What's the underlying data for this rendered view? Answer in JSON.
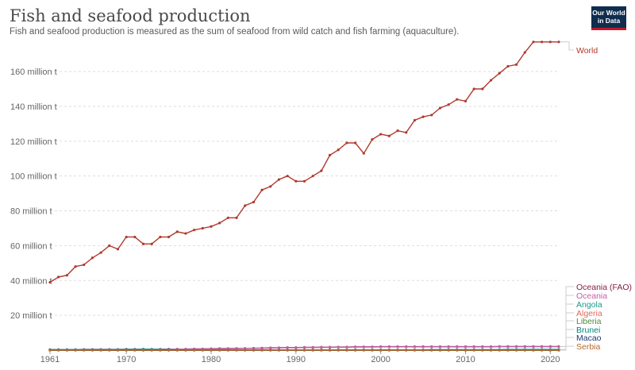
{
  "header": {
    "title": "Fish and seafood production",
    "subtitle": "Fish and seafood production is measured as the sum of seafood from wild catch and fish farming (aquaculture).",
    "logo_line1": "Our World",
    "logo_line2": "in Data"
  },
  "chart_data": {
    "type": "line",
    "title": "Fish and seafood production",
    "subtitle": "Fish and seafood production is measured as the sum of seafood from wild catch and fish farming (aquaculture).",
    "xlabel": "",
    "ylabel": "",
    "xlim": [
      1961,
      2021
    ],
    "ylim": [
      0,
      176
    ],
    "x_ticks": [
      1961,
      1970,
      1980,
      1990,
      2000,
      2010,
      2020
    ],
    "y_ticks": [
      20,
      40,
      60,
      80,
      100,
      120,
      140,
      160
    ],
    "y_tick_labels": [
      "20 million t",
      "40 million t",
      "60 million t",
      "80 million t",
      "100 million t",
      "120 million t",
      "140 million t",
      "160 million t"
    ],
    "grid": "horizontal-dashed",
    "legend": "right-labels",
    "x": [
      1961,
      1962,
      1963,
      1964,
      1965,
      1966,
      1967,
      1968,
      1969,
      1970,
      1971,
      1972,
      1973,
      1974,
      1975,
      1976,
      1977,
      1978,
      1979,
      1980,
      1981,
      1982,
      1983,
      1984,
      1985,
      1986,
      1987,
      1988,
      1989,
      1990,
      1991,
      1992,
      1993,
      1994,
      1995,
      1996,
      1997,
      1998,
      1999,
      2000,
      2001,
      2002,
      2003,
      2004,
      2005,
      2006,
      2007,
      2008,
      2009,
      2010,
      2011,
      2012,
      2013,
      2014,
      2015,
      2016,
      2017,
      2018,
      2019,
      2020,
      2021
    ],
    "series": [
      {
        "name": "World",
        "color": "#b03a2e",
        "values": [
          39,
          42,
          43,
          48,
          49,
          53,
          56,
          60,
          58,
          65,
          65,
          61,
          61,
          65,
          65,
          68,
          67,
          69,
          70,
          71,
          73,
          76,
          76,
          83,
          85,
          92,
          94,
          98,
          100,
          97,
          97,
          100,
          103,
          112,
          115,
          119,
          119,
          113,
          121,
          124,
          123,
          126,
          125,
          132,
          134,
          135,
          139,
          141,
          144,
          143,
          150,
          150,
          155,
          159,
          163,
          164,
          171,
          177,
          177,
          177,
          177
        ]
      },
      {
        "name": "Oceania (FAO)",
        "color": "#8a1c4a",
        "values": [
          0.3,
          0.3,
          0.3,
          0.3,
          0.4,
          0.4,
          0.4,
          0.4,
          0.4,
          0.5,
          0.5,
          0.5,
          0.5,
          0.5,
          0.6,
          0.6,
          0.6,
          0.7,
          0.7,
          0.8,
          0.9,
          0.9,
          1.0,
          1.0,
          1.1,
          1.2,
          1.3,
          1.4,
          1.5,
          1.5,
          1.6,
          1.6,
          1.7,
          1.7,
          1.8,
          1.8,
          1.9,
          1.9,
          1.9,
          2.0,
          2.0,
          2.0,
          2.0,
          2.0,
          2.0,
          2.0,
          2.0,
          2.0,
          2.0,
          2.0,
          2.0,
          2.0,
          2.0,
          2.1,
          2.1,
          2.1,
          2.1,
          2.1,
          2.1,
          2.1,
          2.1
        ]
      },
      {
        "name": "Oceania",
        "color": "#c15fa8",
        "values": [
          0.3,
          0.3,
          0.3,
          0.3,
          0.4,
          0.4,
          0.4,
          0.4,
          0.4,
          0.5,
          0.5,
          0.5,
          0.5,
          0.5,
          0.6,
          0.6,
          0.6,
          0.7,
          0.7,
          0.8,
          0.8,
          0.9,
          0.9,
          1.0,
          1.0,
          1.1,
          1.2,
          1.3,
          1.4,
          1.4,
          1.5,
          1.5,
          1.6,
          1.6,
          1.7,
          1.7,
          1.8,
          1.8,
          1.8,
          1.9,
          1.9,
          1.9,
          1.9,
          1.9,
          1.9,
          1.9,
          1.9,
          1.9,
          1.9,
          1.9,
          1.9,
          1.9,
          1.9,
          2.0,
          2.0,
          2.0,
          2.0,
          2.0,
          2.0,
          2.0,
          2.0
        ]
      },
      {
        "name": "Angola",
        "color": "#1a9a8a",
        "values": [
          0.3,
          0.3,
          0.3,
          0.3,
          0.3,
          0.3,
          0.3,
          0.3,
          0.3,
          0.4,
          0.4,
          0.6,
          0.5,
          0.4,
          0.3,
          0.1,
          0.1,
          0.1,
          0.1,
          0.1,
          0.1,
          0.1,
          0.1,
          0.1,
          0.1,
          0.1,
          0.1,
          0.1,
          0.1,
          0.1,
          0.1,
          0.1,
          0.1,
          0.1,
          0.2,
          0.2,
          0.2,
          0.2,
          0.2,
          0.2,
          0.2,
          0.2,
          0.2,
          0.2,
          0.2,
          0.3,
          0.3,
          0.3,
          0.3,
          0.3,
          0.3,
          0.3,
          0.3,
          0.3,
          0.4,
          0.4,
          0.4,
          0.4,
          0.4,
          0.4,
          0.4
        ]
      },
      {
        "name": "Algeria",
        "color": "#e06a5a",
        "values": [
          0.02,
          0.02,
          0.02,
          0.02,
          0.02,
          0.02,
          0.02,
          0.02,
          0.02,
          0.03,
          0.03,
          0.03,
          0.03,
          0.03,
          0.04,
          0.04,
          0.04,
          0.04,
          0.04,
          0.05,
          0.05,
          0.05,
          0.05,
          0.06,
          0.06,
          0.07,
          0.07,
          0.08,
          0.08,
          0.09,
          0.09,
          0.1,
          0.1,
          0.1,
          0.1,
          0.1,
          0.1,
          0.1,
          0.1,
          0.1,
          0.1,
          0.1,
          0.1,
          0.1,
          0.1,
          0.1,
          0.1,
          0.1,
          0.1,
          0.1,
          0.1,
          0.1,
          0.1,
          0.1,
          0.1,
          0.1,
          0.1,
          0.1,
          0.1,
          0.1,
          0.1
        ]
      },
      {
        "name": "Liberia",
        "color": "#4e8a3a",
        "values": [
          0.01,
          0.01,
          0.01,
          0.01,
          0.01,
          0.01,
          0.01,
          0.01,
          0.01,
          0.01,
          0.01,
          0.01,
          0.01,
          0.01,
          0.01,
          0.01,
          0.01,
          0.01,
          0.01,
          0.01,
          0.01,
          0.01,
          0.01,
          0.01,
          0.01,
          0.01,
          0.01,
          0.01,
          0.01,
          0.01,
          0.01,
          0.01,
          0.01,
          0.01,
          0.01,
          0.01,
          0.01,
          0.01,
          0.01,
          0.01,
          0.01,
          0.01,
          0.01,
          0.01,
          0.01,
          0.01,
          0.01,
          0.01,
          0.01,
          0.01,
          0.01,
          0.01,
          0.01,
          0.01,
          0.01,
          0.01,
          0.01,
          0.01,
          0.01,
          0.01,
          0.01
        ]
      },
      {
        "name": "Brunei",
        "color": "#00847e",
        "values": [
          0,
          0,
          0,
          0,
          0,
          0,
          0,
          0,
          0,
          0,
          0,
          0,
          0,
          0,
          0,
          0,
          0,
          0,
          0,
          0,
          0,
          0,
          0,
          0,
          0,
          0,
          0,
          0,
          0,
          0,
          0,
          0,
          0,
          0,
          0,
          0,
          0,
          0,
          0,
          0,
          0,
          0,
          0,
          0,
          0,
          0,
          0,
          0,
          0,
          0,
          0,
          0,
          0,
          0,
          0,
          0,
          0,
          0,
          0,
          0,
          0
        ]
      },
      {
        "name": "Macao",
        "color": "#1c3a6e",
        "values": [
          0,
          0,
          0,
          0,
          0,
          0,
          0,
          0,
          0,
          0,
          0,
          0,
          0,
          0,
          0,
          0,
          0,
          0,
          0,
          0,
          0,
          0,
          0,
          0,
          0,
          0,
          0,
          0,
          0,
          0,
          0,
          0,
          0,
          0,
          0,
          0,
          0,
          0,
          0,
          0,
          0,
          0,
          0,
          0,
          0,
          0,
          0,
          0,
          0,
          0,
          0,
          0,
          0,
          0,
          0,
          0,
          0,
          0,
          0,
          0,
          0
        ]
      },
      {
        "name": "Serbia",
        "color": "#b9692a",
        "values": [
          0,
          0,
          0,
          0,
          0,
          0,
          0,
          0,
          0,
          0,
          0,
          0,
          0,
          0,
          0,
          0,
          0,
          0,
          0,
          0,
          0,
          0,
          0,
          0,
          0,
          0,
          0,
          0,
          0,
          0,
          0,
          0,
          0,
          0,
          0,
          0,
          0,
          0,
          0,
          0,
          0,
          0,
          0,
          0,
          0,
          0,
          0,
          0,
          0,
          0,
          0,
          0,
          0,
          0,
          0,
          0,
          0,
          0,
          0,
          0,
          0
        ]
      }
    ]
  }
}
